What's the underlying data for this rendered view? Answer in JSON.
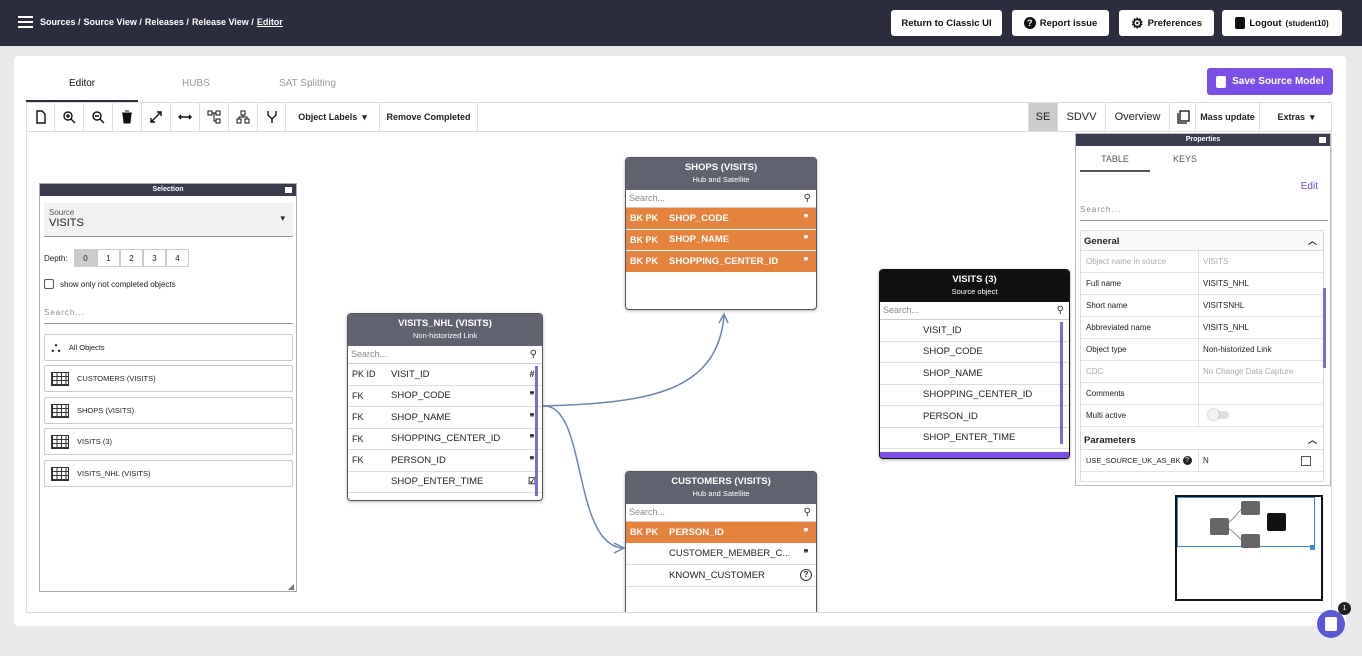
{
  "breadcrumb": [
    "Sources /",
    "Source View /",
    "Releases /",
    "Release View /",
    "Editor"
  ],
  "top_buttons": {
    "classic": "Return to Classic UI",
    "report": "Report issue",
    "prefs": "Preferences",
    "logout": "Logout",
    "user": "(student10)"
  },
  "tabs": [
    "Editor",
    "HUBS",
    "SAT Splitting"
  ],
  "save_label": "Save Source Model",
  "toolbar": {
    "object_labels": "Object Labels",
    "remove_completed": "Remove Completed",
    "se": "SE",
    "sdvv": "SDVV",
    "overview": "Overview",
    "mass_update": "Mass update",
    "extras": "Extras"
  },
  "selection": {
    "title": "Selection",
    "source_label": "Source",
    "source_value": "VISITS",
    "depth_label": "Depth:",
    "depths": [
      "0",
      "1",
      "2",
      "3",
      "4"
    ],
    "checkbox_label": "show only not completed objects",
    "search_placeholder": "Search...",
    "items": [
      "All Objects",
      "CUSTOMERS (VISITS)",
      "SHOPS (VISITS)",
      "VISITS (3)",
      "VISITS_NHL (VISITS)"
    ]
  },
  "entities": {
    "shops": {
      "title": "SHOPS (VISITS)",
      "subtitle": "Hub and Satellite",
      "search": "Search...",
      "rows": [
        {
          "k": "BK PK",
          "n": "SHOP_CODE",
          "i": "❞"
        },
        {
          "k": "BK PK",
          "n": "SHOP_NAME",
          "i": "❞"
        },
        {
          "k": "BK PK",
          "n": "SHOPPING_CENTER_ID",
          "i": "❞"
        }
      ]
    },
    "visits_nhl": {
      "title": "VISITS_NHL (VISITS)",
      "subtitle": "Non-historized Link",
      "search": "Search...",
      "rows": [
        {
          "k": "PK ID",
          "n": "VISIT_ID",
          "i": "#"
        },
        {
          "k": "FK",
          "n": "SHOP_CODE",
          "i": "❞"
        },
        {
          "k": "FK",
          "n": "SHOP_NAME",
          "i": "❞"
        },
        {
          "k": "FK",
          "n": "SHOPPING_CENTER_ID",
          "i": "❞"
        },
        {
          "k": "FK",
          "n": "PERSON_ID",
          "i": "❞"
        },
        {
          "k": "",
          "n": "SHOP_ENTER_TIME",
          "i": "☑"
        }
      ]
    },
    "visits": {
      "title": "VISITS (3)",
      "subtitle": "Source object",
      "search": "Search...",
      "rows": [
        "VISIT_ID",
        "SHOP_CODE",
        "SHOP_NAME",
        "SHOPPING_CENTER_ID",
        "PERSON_ID",
        "SHOP_ENTER_TIME"
      ]
    },
    "customers": {
      "title": "CUSTOMERS (VISITS)",
      "subtitle": "Hub and Satellite",
      "search": "Search...",
      "rows": [
        {
          "k": "BK PK",
          "n": "PERSON_ID",
          "i": "❞"
        },
        {
          "k": "",
          "n": "CUSTOMER_MEMBER_C...",
          "i": "❞"
        },
        {
          "k": "",
          "n": "KNOWN_CUSTOMER",
          "i": "?"
        }
      ]
    }
  },
  "properties": {
    "title": "Properties",
    "tabs": [
      "TABLE",
      "KEYS"
    ],
    "edit": "Edit",
    "search": "Search...",
    "general": "General",
    "rows": [
      {
        "l": "Object name in source",
        "v": "VISITS",
        "dis": true
      },
      {
        "l": "Full name",
        "v": "VISITS_NHL"
      },
      {
        "l": "Short name",
        "v": "VISITSNHL"
      },
      {
        "l": "Abbreviated name",
        "v": "VISITS_NHL"
      },
      {
        "l": "Object type",
        "v": "Non-historized Link"
      },
      {
        "l": "CDC",
        "v": "No Change Data Capture",
        "dis": true
      },
      {
        "l": "Comments",
        "v": ""
      },
      {
        "l": "Multi active",
        "v": ""
      }
    ],
    "parameters": "Parameters",
    "param_row": {
      "l": "USE_SOURCE_UK_AS_BK",
      "v": "N"
    }
  },
  "chat_badge": "1"
}
